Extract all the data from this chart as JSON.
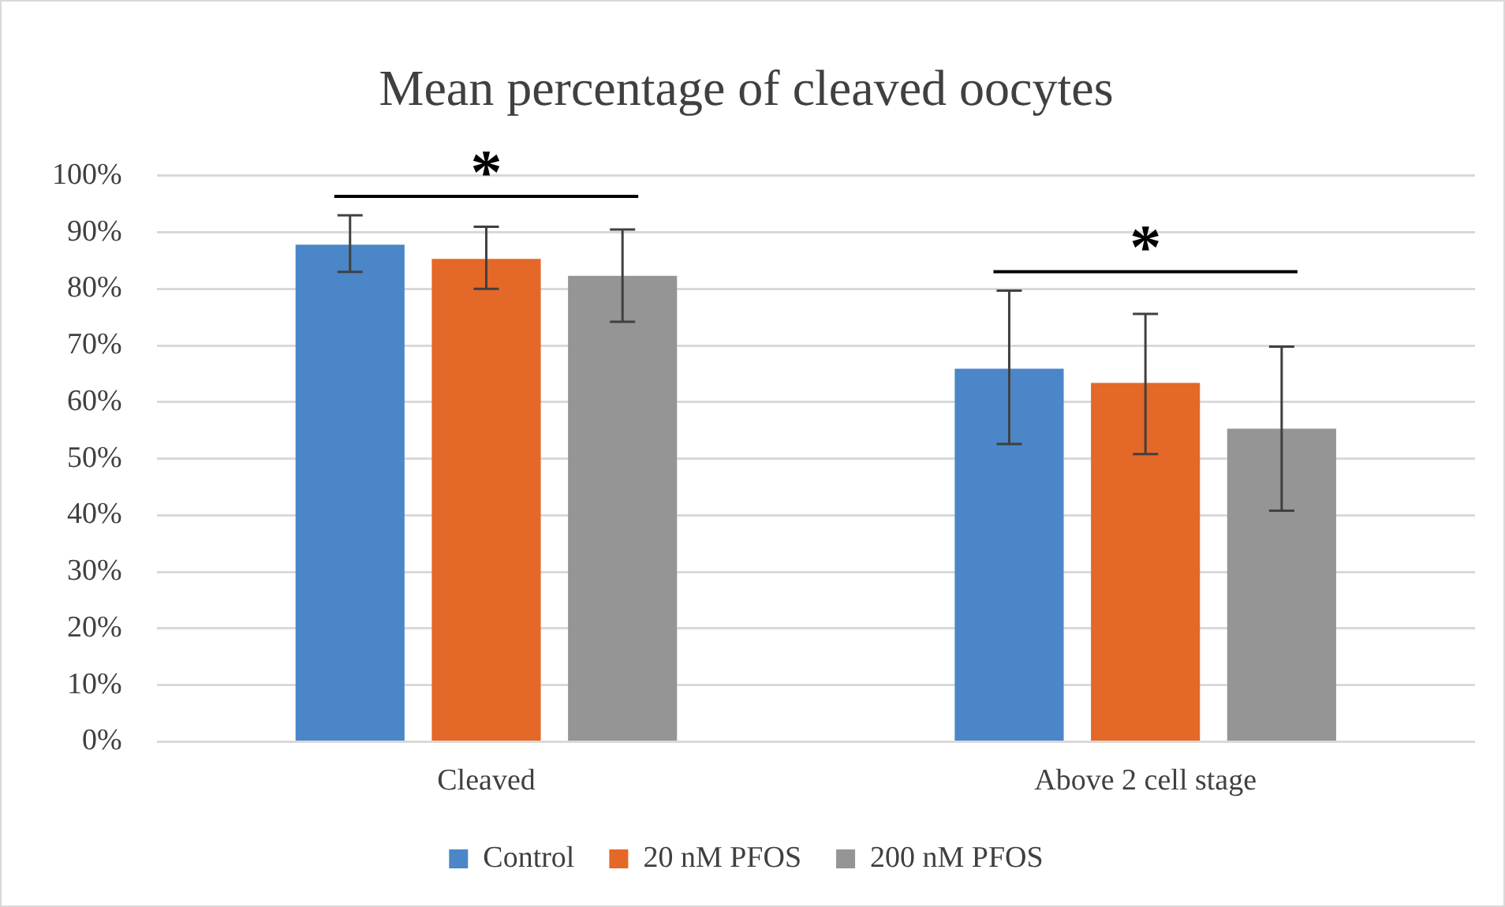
{
  "chart_data": {
    "type": "bar",
    "title": "Mean percentage of cleaved oocytes",
    "categories": [
      "Cleaved",
      "Above 2 cell stage"
    ],
    "series": [
      {
        "name": "Control",
        "color": "#4a86c8",
        "values": [
          87.8,
          65.9
        ],
        "errors": [
          [
            83,
            93
          ],
          [
            52.6,
            79.7
          ]
        ]
      },
      {
        "name": "20 nM PFOS",
        "color": "#e46827",
        "values": [
          85.3,
          63.4
        ],
        "errors": [
          [
            80,
            91
          ],
          [
            50.8,
            75.6
          ]
        ]
      },
      {
        "name": "200 nM PFOS",
        "color": "#959595",
        "values": [
          82.3,
          55.3
        ],
        "errors": [
          [
            74.2,
            90.5
          ],
          [
            40.8,
            69.8
          ]
        ]
      }
    ],
    "ylim": [
      0,
      100
    ],
    "yticks": [
      {
        "value": 0,
        "label": "0%"
      },
      {
        "value": 10,
        "label": "10%"
      },
      {
        "value": 20,
        "label": "20%"
      },
      {
        "value": 30,
        "label": "30%"
      },
      {
        "value": 40,
        "label": "40%"
      },
      {
        "value": 50,
        "label": "50%"
      },
      {
        "value": 60,
        "label": "60%"
      },
      {
        "value": 70,
        "label": "70%"
      },
      {
        "value": 80,
        "label": "80%"
      },
      {
        "value": 90,
        "label": "90%"
      },
      {
        "value": 100,
        "label": "100%"
      }
    ],
    "grid": "y",
    "legend": "bottom",
    "annotations": [
      "*",
      "*"
    ]
  }
}
